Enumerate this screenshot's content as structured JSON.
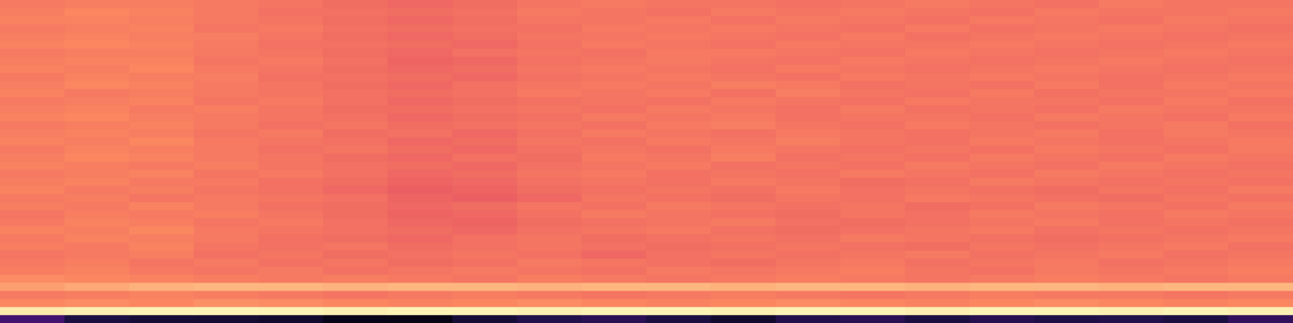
{
  "chart_data": {
    "type": "heatmap",
    "tick_labels": false,
    "grid": false,
    "color_range": [
      0,
      100
    ],
    "z": [
      [
        22,
        12,
        10,
        9,
        8,
        4,
        3,
        10,
        14,
        16,
        12,
        8,
        14,
        16,
        12,
        15,
        13,
        14,
        12,
        18
      ],
      [
        96,
        97,
        98,
        98,
        98,
        97,
        98,
        98,
        97,
        98,
        98,
        97,
        98,
        98,
        97,
        98,
        98,
        97,
        98,
        97
      ],
      [
        75,
        76,
        75,
        77,
        76,
        75,
        74,
        75,
        76,
        75,
        74,
        75,
        76,
        75,
        74,
        75,
        76,
        75,
        74,
        75
      ],
      [
        72,
        73,
        74,
        73,
        72,
        71,
        72,
        73,
        72,
        71,
        72,
        73,
        72,
        71,
        72,
        73,
        72,
        72,
        71,
        72
      ],
      [
        80,
        82,
        84,
        85,
        85,
        84,
        85,
        85,
        84,
        85,
        85,
        84,
        85,
        85,
        84,
        85,
        85,
        84,
        85,
        85
      ],
      [
        76,
        75,
        74,
        73,
        72,
        73,
        72,
        71,
        73,
        72,
        71,
        72,
        73,
        72,
        71,
        72,
        73,
        72,
        71,
        72
      ],
      [
        73,
        74,
        72,
        71,
        72,
        70,
        71,
        72,
        71,
        70,
        72,
        71,
        72,
        73,
        71,
        70,
        72,
        71,
        72,
        73
      ],
      [
        72,
        73,
        71,
        72,
        70,
        71,
        69,
        70,
        72,
        71,
        70,
        69,
        71,
        72,
        70,
        71,
        72,
        70,
        71,
        72
      ],
      [
        71,
        72,
        73,
        70,
        71,
        69,
        70,
        71,
        70,
        68,
        70,
        71,
        70,
        71,
        72,
        70,
        71,
        72,
        70,
        71
      ],
      [
        73,
        72,
        74,
        71,
        70,
        71,
        69,
        70,
        71,
        70,
        69,
        70,
        71,
        70,
        69,
        71,
        70,
        71,
        72,
        70
      ],
      [
        72,
        74,
        73,
        72,
        70,
        69,
        68,
        70,
        71,
        69,
        70,
        71,
        70,
        72,
        71,
        70,
        69,
        70,
        71,
        72
      ],
      [
        74,
        73,
        75,
        72,
        71,
        70,
        69,
        68,
        70,
        71,
        72,
        70,
        69,
        70,
        71,
        72,
        70,
        71,
        70,
        71
      ],
      [
        72,
        74,
        73,
        71,
        72,
        70,
        68,
        67,
        69,
        70,
        71,
        72,
        70,
        69,
        70,
        71,
        72,
        70,
        71,
        70
      ],
      [
        71,
        73,
        72,
        73,
        71,
        69,
        67,
        68,
        70,
        72,
        71,
        70,
        69,
        71,
        70,
        72,
        71,
        70,
        72,
        71
      ],
      [
        73,
        72,
        74,
        72,
        70,
        69,
        68,
        69,
        71,
        70,
        72,
        71,
        70,
        71,
        69,
        70,
        72,
        71,
        70,
        72
      ],
      [
        72,
        73,
        71,
        72,
        71,
        70,
        67,
        66,
        68,
        71,
        70,
        69,
        71,
        70,
        72,
        71,
        70,
        69,
        71,
        70
      ],
      [
        74,
        72,
        73,
        71,
        70,
        68,
        66,
        67,
        69,
        70,
        71,
        70,
        72,
        70,
        71,
        70,
        69,
        71,
        70,
        72
      ],
      [
        73,
        74,
        72,
        72,
        70,
        69,
        67,
        68,
        70,
        71,
        70,
        72,
        71,
        69,
        70,
        72,
        71,
        70,
        71,
        70
      ],
      [
        72,
        73,
        74,
        71,
        72,
        70,
        68,
        69,
        71,
        72,
        70,
        71,
        70,
        72,
        71,
        70,
        72,
        71,
        70,
        71
      ],
      [
        74,
        73,
        72,
        73,
        71,
        70,
        69,
        68,
        70,
        71,
        72,
        70,
        71,
        70,
        72,
        71,
        70,
        72,
        71,
        70
      ],
      [
        73,
        75,
        74,
        72,
        71,
        69,
        68,
        70,
        69,
        72,
        71,
        73,
        70,
        71,
        70,
        72,
        71,
        70,
        72,
        71
      ],
      [
        72,
        74,
        73,
        72,
        70,
        71,
        69,
        68,
        70,
        71,
        70,
        72,
        71,
        70,
        71,
        70,
        72,
        71,
        70,
        72
      ],
      [
        74,
        73,
        75,
        72,
        71,
        70,
        68,
        69,
        71,
        70,
        72,
        71,
        73,
        71,
        70,
        72,
        71,
        70,
        71,
        72
      ],
      [
        73,
        74,
        73,
        71,
        72,
        69,
        70,
        68,
        70,
        72,
        71,
        70,
        72,
        71,
        70,
        71,
        72,
        70,
        72,
        71
      ],
      [
        72,
        73,
        74,
        72,
        70,
        71,
        69,
        70,
        71,
        70,
        72,
        73,
        71,
        70,
        72,
        71,
        70,
        71,
        72,
        70
      ],
      [
        74,
        75,
        73,
        72,
        71,
        70,
        68,
        69,
        70,
        72,
        71,
        72,
        70,
        71,
        71,
        70,
        72,
        71,
        70,
        72
      ],
      [
        73,
        74,
        72,
        73,
        71,
        69,
        69,
        70,
        71,
        70,
        72,
        71,
        70,
        72,
        70,
        71,
        70,
        72,
        71,
        71
      ],
      [
        72,
        73,
        74,
        71,
        72,
        70,
        68,
        69,
        70,
        71,
        70,
        72,
        71,
        70,
        72,
        71,
        71,
        70,
        72,
        70
      ],
      [
        74,
        72,
        73,
        72,
        71,
        70,
        69,
        70,
        72,
        71,
        72,
        70,
        73,
        71,
        70,
        72,
        70,
        71,
        71,
        72
      ],
      [
        73,
        75,
        74,
        72,
        71,
        69,
        68,
        70,
        71,
        72,
        71,
        73,
        72,
        70,
        71,
        70,
        72,
        70,
        72,
        71
      ],
      [
        72,
        74,
        73,
        73,
        70,
        70,
        69,
        68,
        70,
        71,
        72,
        71,
        70,
        72,
        71,
        72,
        71,
        70,
        71,
        72
      ],
      [
        74,
        73,
        75,
        72,
        71,
        69,
        68,
        69,
        71,
        72,
        71,
        70,
        72,
        71,
        70,
        71,
        72,
        71,
        70,
        71
      ],
      [
        73,
        74,
        74,
        71,
        72,
        70,
        67,
        68,
        70,
        71,
        72,
        71,
        70,
        72,
        71,
        70,
        71,
        72,
        71,
        70
      ],
      [
        72,
        73,
        73,
        72,
        71,
        69,
        68,
        70,
        71,
        70,
        72,
        72,
        71,
        70,
        72,
        71,
        70,
        71,
        72,
        71
      ],
      [
        74,
        75,
        74,
        72,
        70,
        70,
        69,
        68,
        70,
        72,
        71,
        70,
        72,
        71,
        71,
        72,
        71,
        70,
        71,
        72
      ],
      [
        73,
        74,
        73,
        73,
        71,
        69,
        68,
        69,
        71,
        71,
        72,
        71,
        70,
        72,
        70,
        71,
        72,
        71,
        70,
        71
      ],
      [
        72,
        73,
        74,
        71,
        72,
        70,
        69,
        70,
        70,
        72,
        71,
        72,
        71,
        70,
        72,
        70,
        71,
        72,
        71,
        70
      ],
      [
        74,
        74,
        73,
        72,
        71,
        69,
        68,
        69,
        71,
        71,
        72,
        70,
        72,
        71,
        70,
        72,
        71,
        70,
        72,
        71
      ],
      [
        73,
        75,
        74,
        72,
        70,
        70,
        69,
        70,
        72,
        71,
        70,
        72,
        71,
        72,
        71,
        70,
        72,
        71,
        71,
        72
      ],
      [
        72,
        73,
        73,
        72,
        71,
        69,
        68,
        69,
        71,
        72,
        71,
        71,
        70,
        71,
        72,
        71,
        70,
        72,
        71,
        71
      ]
    ]
  }
}
